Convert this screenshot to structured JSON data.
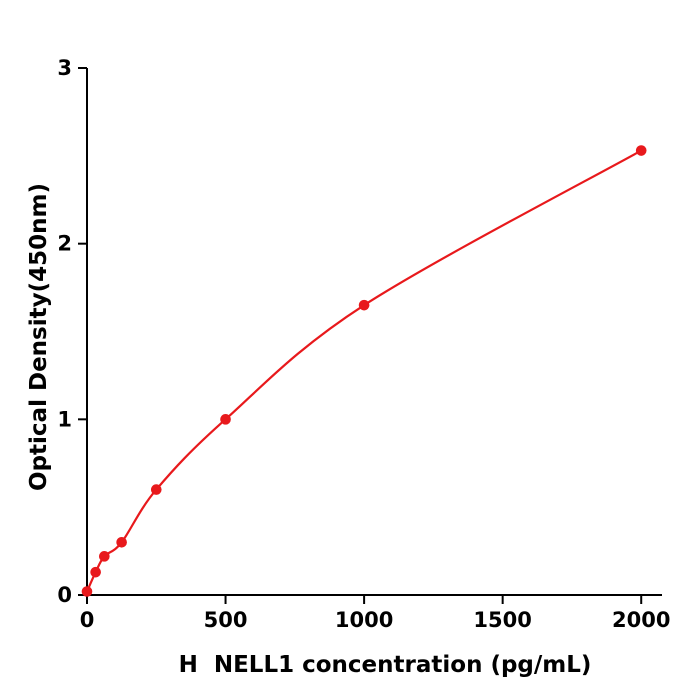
{
  "figure": {
    "background_color": "#ffffff"
  },
  "chart_data": {
    "type": "line",
    "title": "",
    "xlabel": "H  NELL1 concentration (pg/mL)",
    "ylabel": "Optical Density(450nm)",
    "x": [
      0,
      31.25,
      62.5,
      125,
      250,
      500,
      1000,
      2000
    ],
    "y": [
      0.02,
      0.13,
      0.22,
      0.3,
      0.6,
      1.0,
      1.65,
      2.53
    ],
    "xlim": [
      0,
      2075
    ],
    "ylim": [
      0,
      3
    ],
    "x_ticks": [
      0,
      500,
      1000,
      1500,
      2000
    ],
    "y_ticks": [
      0,
      1,
      2,
      3
    ],
    "line_color": "#e8191c",
    "marker": "circle",
    "marker_color": "#e8191c",
    "axis_color": "#000000",
    "grid": false,
    "legend_position": "none"
  }
}
